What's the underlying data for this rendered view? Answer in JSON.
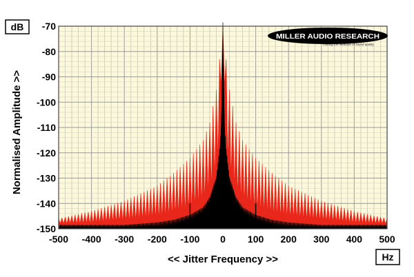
{
  "chart_data": {
    "type": "area",
    "ylabel": "Normalised Amplitude >>",
    "xlabel": "<< Jitter Frequency >>",
    "yunit": "dB",
    "xunit": "Hz",
    "xlim": [
      -500,
      500
    ],
    "ylim": [
      -150,
      -70
    ],
    "xticks": [
      -500,
      -400,
      -300,
      -200,
      -100,
      0,
      100,
      200,
      300,
      400,
      500
    ],
    "yticks": [
      -70,
      -80,
      -90,
      -100,
      -110,
      -120,
      -130,
      -140,
      -150
    ],
    "grid": true,
    "logo": {
      "brand": "MILLER AUDIO RESEARCH",
      "tagline": "Getting the measure of sound quality"
    },
    "series": [
      {
        "color": "#e8261a",
        "comb_spacing_hz": 10,
        "x": [
          -500,
          -400,
          -300,
          -200,
          -150,
          -100,
          -60,
          -40,
          -20,
          -10,
          0,
          10,
          20,
          40,
          60,
          100,
          150,
          200,
          300,
          400,
          500
        ],
        "peak_db": [
          -146,
          -143,
          -139,
          -133,
          -128,
          -122,
          -115,
          -108,
          -95,
          -83,
          -70,
          -83,
          -95,
          -108,
          -115,
          -122,
          -128,
          -133,
          -139,
          -143,
          -146
        ],
        "floor_db": [
          -148,
          -148,
          -147,
          -146,
          -145,
          -143,
          -140,
          -136,
          -128,
          -118,
          -70,
          -118,
          -128,
          -136,
          -140,
          -143,
          -145,
          -146,
          -147,
          -148,
          -148
        ]
      },
      {
        "color": "#000000",
        "x": [
          -500,
          -300,
          -200,
          -150,
          -100,
          -60,
          -40,
          -20,
          -10,
          -5,
          0,
          5,
          10,
          20,
          40,
          60,
          100,
          150,
          200,
          300,
          500
        ],
        "y": [
          -150,
          -150,
          -149,
          -148,
          -146,
          -143,
          -139,
          -131,
          -120,
          -110,
          -70,
          -110,
          -120,
          -131,
          -139,
          -143,
          -146,
          -148,
          -149,
          -150,
          -150
        ],
        "spikes": [
          {
            "x": -100,
            "y": -140
          },
          {
            "x": 100,
            "y": -140
          }
        ]
      }
    ]
  }
}
